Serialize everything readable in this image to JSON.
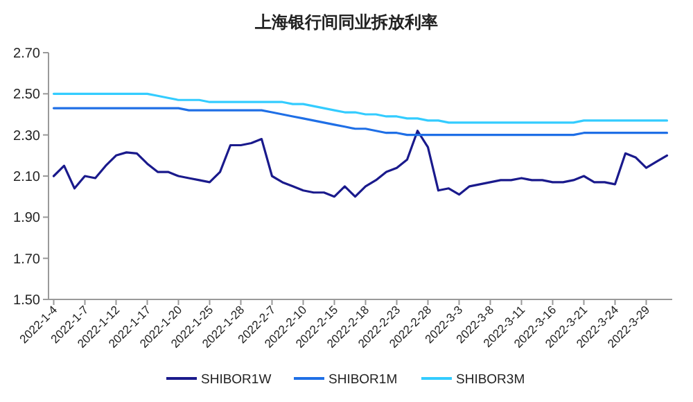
{
  "chart_data": {
    "type": "line",
    "title": "上海银行间同业拆放利率",
    "categories": [
      "2022-1-4",
      null,
      null,
      "2022-1-7",
      null,
      null,
      "2022-1-12",
      null,
      null,
      "2022-1-17",
      null,
      null,
      "2022-1-20",
      null,
      null,
      "2022-1-25",
      null,
      null,
      "2022-1-28",
      null,
      null,
      "2022-2-7",
      null,
      null,
      "2022-2-10",
      null,
      null,
      "2022-2-15",
      null,
      null,
      "2022-2-18",
      null,
      null,
      "2022-2-23",
      null,
      null,
      "2022-2-28",
      null,
      null,
      "2022-3-3",
      null,
      null,
      "2022-3-8",
      null,
      null,
      "2022-3-11",
      null,
      null,
      "2022-3-16",
      null,
      null,
      "2022-3-21",
      null,
      null,
      "2022-3-24",
      null,
      null,
      "2022-3-29",
      null,
      null
    ],
    "series": [
      {
        "name": "SHIBOR1W",
        "color": "#1a1a8c",
        "values": [
          2.1,
          2.15,
          2.04,
          2.1,
          2.09,
          2.15,
          2.2,
          2.215,
          2.21,
          2.16,
          2.12,
          2.12,
          2.1,
          2.09,
          2.08,
          2.07,
          2.12,
          2.25,
          2.25,
          2.26,
          2.28,
          2.1,
          2.07,
          2.05,
          2.03,
          2.02,
          2.02,
          2.0,
          2.05,
          2.0,
          2.05,
          2.08,
          2.12,
          2.14,
          2.18,
          2.32,
          2.24,
          2.03,
          2.04,
          2.01,
          2.05,
          2.06,
          2.07,
          2.08,
          2.08,
          2.09,
          2.08,
          2.08,
          2.07,
          2.07,
          2.08,
          2.1,
          2.07,
          2.07,
          2.06,
          2.21,
          2.19,
          2.14,
          2.17,
          2.2
        ]
      },
      {
        "name": "SHIBOR1M",
        "color": "#1f6fe6",
        "values": [
          2.43,
          2.43,
          2.43,
          2.43,
          2.43,
          2.43,
          2.43,
          2.43,
          2.43,
          2.43,
          2.43,
          2.43,
          2.43,
          2.42,
          2.42,
          2.42,
          2.42,
          2.42,
          2.42,
          2.42,
          2.42,
          2.41,
          2.4,
          2.39,
          2.38,
          2.37,
          2.36,
          2.35,
          2.34,
          2.33,
          2.33,
          2.32,
          2.31,
          2.31,
          2.3,
          2.3,
          2.3,
          2.3,
          2.3,
          2.3,
          2.3,
          2.3,
          2.3,
          2.3,
          2.3,
          2.3,
          2.3,
          2.3,
          2.3,
          2.3,
          2.3,
          2.31,
          2.31,
          2.31,
          2.31,
          2.31,
          2.31,
          2.31,
          2.31,
          2.31
        ]
      },
      {
        "name": "SHIBOR3M",
        "color": "#33ccff",
        "values": [
          2.5,
          2.5,
          2.5,
          2.5,
          2.5,
          2.5,
          2.5,
          2.5,
          2.5,
          2.5,
          2.49,
          2.48,
          2.47,
          2.47,
          2.47,
          2.46,
          2.46,
          2.46,
          2.46,
          2.46,
          2.46,
          2.46,
          2.46,
          2.45,
          2.45,
          2.44,
          2.43,
          2.42,
          2.41,
          2.41,
          2.4,
          2.4,
          2.39,
          2.39,
          2.38,
          2.38,
          2.37,
          2.37,
          2.36,
          2.36,
          2.36,
          2.36,
          2.36,
          2.36,
          2.36,
          2.36,
          2.36,
          2.36,
          2.36,
          2.36,
          2.36,
          2.37,
          2.37,
          2.37,
          2.37,
          2.37,
          2.37,
          2.37,
          2.37,
          2.37
        ]
      }
    ],
    "ylim": [
      1.5,
      2.7
    ],
    "yticks": [
      {
        "value": 1.5,
        "label": "1.50"
      },
      {
        "value": 1.7,
        "label": "1.70"
      },
      {
        "value": 1.9,
        "label": "1.90"
      },
      {
        "value": 2.1,
        "label": "2.10"
      },
      {
        "value": 2.3,
        "label": "2.30"
      },
      {
        "value": 2.5,
        "label": "2.50"
      },
      {
        "value": 2.7,
        "label": "2.70"
      }
    ],
    "grid": false,
    "legend": "bottom",
    "marker": "none",
    "line_style": "solid"
  }
}
